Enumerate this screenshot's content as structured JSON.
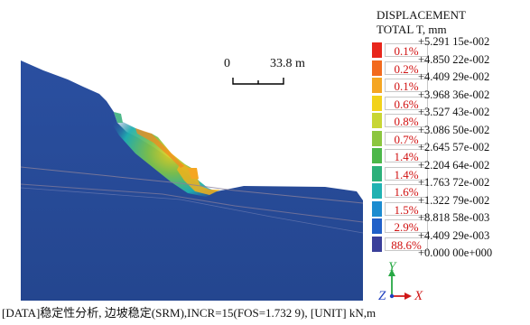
{
  "legend": {
    "title_line1": "DISPLACEMENT",
    "title_line2": "TOTAL T, mm",
    "values": [
      "+5.291 15e-002",
      "+4.850 22e-002",
      "+4.409 29e-002",
      "+3.968 36e-002",
      "+3.527 43e-002",
      "+3.086 50e-002",
      "+2.645 57e-002",
      "+2.204 64e-002",
      "+1.763 72e-002",
      "+1.322 79e-002",
      "+8.818 58e-003",
      "+4.409 29e-003",
      "+0.000 00e+000"
    ],
    "percents": [
      "0.1%",
      "0.2%",
      "0.1%",
      "0.6%",
      "0.8%",
      "0.7%",
      "1.4%",
      "1.4%",
      "1.6%",
      "1.5%",
      "2.9%",
      "88.6%"
    ],
    "colors": [
      "#e8261c",
      "#f26a1e",
      "#f5a623",
      "#f2d21a",
      "#c8d634",
      "#8cc63f",
      "#4cb749",
      "#2cb07a",
      "#20b2b2",
      "#1c8cd0",
      "#2060c8",
      "#3a3f9a"
    ]
  },
  "scale_bar": {
    "start": "0",
    "end": "33.8 m"
  },
  "axes": {
    "y": "Y",
    "z": "Z",
    "x": "X"
  },
  "footer": "[DATA]稳定性分析, 边坡稳定(SRM),INCR=15(FOS=1.732 9), [UNIT] kN,m"
}
